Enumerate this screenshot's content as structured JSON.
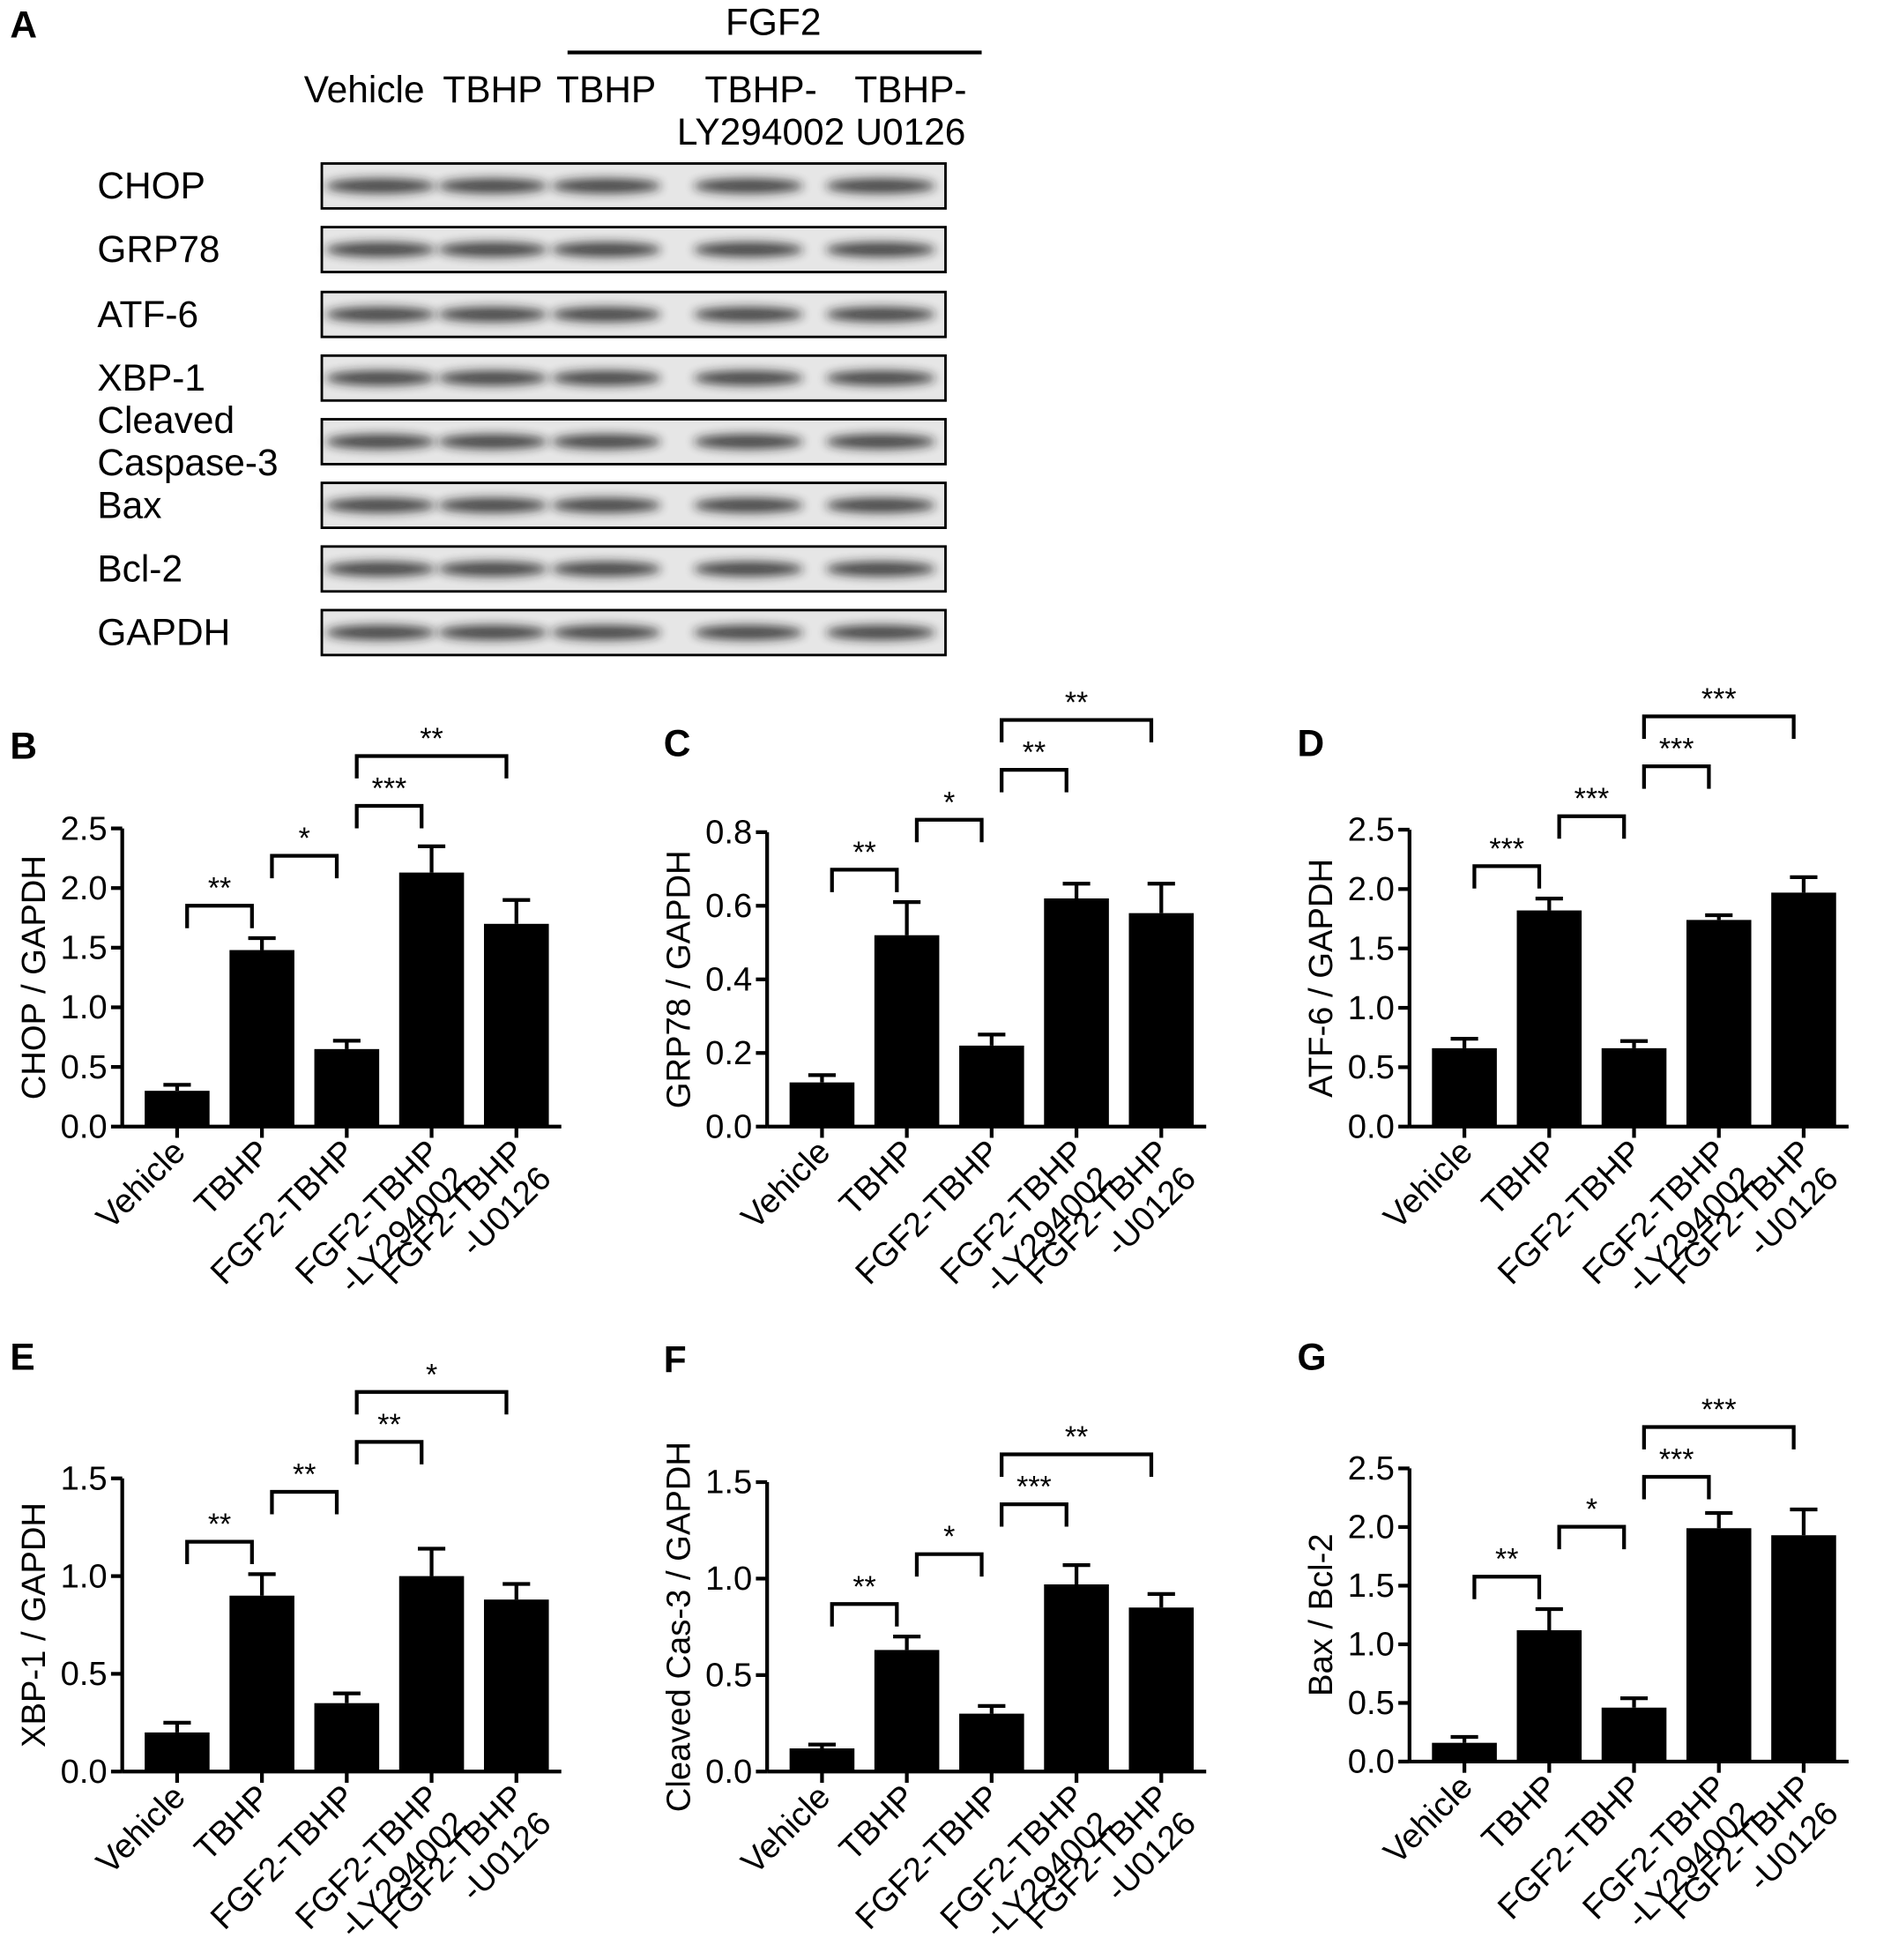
{
  "blot": {
    "panel_label": "A",
    "group_label": "FGF2",
    "lanes": [
      "Vehicle",
      "TBHP",
      "TBHP",
      "TBHP-\nLY294002",
      "TBHP-\nU0126"
    ],
    "rows": [
      "CHOP",
      "GRP78",
      "ATF-6",
      "XBP-1",
      "Cleaved\nCaspase-3",
      "Bax",
      "Bcl-2",
      "GAPDH"
    ]
  },
  "chart_data": [
    {
      "type": "bar",
      "panel_label": "B",
      "ylabel": "CHOP / GAPDH",
      "color": "#000000",
      "categories": [
        "Vehicle",
        "TBHP",
        "FGF2-TBHP",
        "FGF2-TBHP\n-LY294002",
        "FGF2-TBHP\n-U0126"
      ],
      "values": [
        0.3,
        1.48,
        0.65,
        2.13,
        1.7
      ],
      "errors": [
        0.05,
        0.1,
        0.07,
        0.22,
        0.2
      ],
      "ylim": [
        0,
        2.5
      ],
      "yticks": [
        {
          "value": 0,
          "label": "0.0"
        },
        0.5,
        {
          "value": 1,
          "label": "1.0"
        },
        1.5,
        {
          "value": 2,
          "label": "2.0"
        },
        2.5
      ],
      "comparisons": [
        {
          "from": 0,
          "to": 1,
          "label": "**"
        },
        {
          "from": 1,
          "to": 2,
          "label": "*"
        },
        {
          "from": 2,
          "to": 3,
          "label": "***"
        },
        {
          "from": 2,
          "to": 4,
          "label": "**"
        }
      ]
    },
    {
      "type": "bar",
      "panel_label": "C",
      "ylabel": "GRP78 / GAPDH",
      "color": "#000000",
      "categories": [
        "Vehicle",
        "TBHP",
        "FGF2-TBHP",
        "FGF2-TBHP\n-LY294002",
        "FGF2-TBHP\n-U0126"
      ],
      "values": [
        0.12,
        0.52,
        0.22,
        0.62,
        0.58
      ],
      "errors": [
        0.02,
        0.09,
        0.03,
        0.04,
        0.08
      ],
      "ylim": [
        0,
        0.8
      ],
      "yticks": [
        {
          "value": 0,
          "label": "0.0"
        },
        0.2,
        0.4,
        0.6,
        0.8
      ],
      "comparisons": [
        {
          "from": 0,
          "to": 1,
          "label": "**"
        },
        {
          "from": 1,
          "to": 2,
          "label": "*"
        },
        {
          "from": 2,
          "to": 3,
          "label": "**"
        },
        {
          "from": 2,
          "to": 4,
          "label": "**"
        }
      ]
    },
    {
      "type": "bar",
      "panel_label": "D",
      "ylabel": "ATF-6 / GAPDH",
      "color": "#000000",
      "categories": [
        "Vehicle",
        "TBHP",
        "FGF2-TBHP",
        "FGF2-TBHP\n-LY294002",
        "FGF2-TBHP\n-U0126"
      ],
      "values": [
        0.66,
        1.82,
        0.66,
        1.74,
        1.97
      ],
      "errors": [
        0.08,
        0.1,
        0.06,
        0.04,
        0.13
      ],
      "ylim": [
        0,
        2.5
      ],
      "yticks": [
        {
          "value": 0,
          "label": "0.0"
        },
        0.5,
        {
          "value": 1,
          "label": "1.0"
        },
        1.5,
        {
          "value": 2,
          "label": "2.0"
        },
        2.5
      ],
      "comparisons": [
        {
          "from": 0,
          "to": 1,
          "label": "***"
        },
        {
          "from": 1,
          "to": 2,
          "label": "***"
        },
        {
          "from": 2,
          "to": 3,
          "label": "***"
        },
        {
          "from": 2,
          "to": 4,
          "label": "***"
        }
      ]
    },
    {
      "type": "bar",
      "panel_label": "E",
      "ylabel": "XBP-1 / GAPDH",
      "color": "#000000",
      "categories": [
        "Vehicle",
        "TBHP",
        "FGF2-TBHP",
        "FGF2-TBHP\n-LY294002",
        "FGF2-TBHP\n-U0126"
      ],
      "values": [
        0.2,
        0.9,
        0.35,
        1.0,
        0.88
      ],
      "errors": [
        0.05,
        0.11,
        0.05,
        0.14,
        0.08
      ],
      "ylim": [
        0,
        1.5
      ],
      "yticks": [
        {
          "value": 0,
          "label": "0.0"
        },
        0.5,
        {
          "value": 1,
          "label": "1.0"
        },
        1.5
      ],
      "comparisons": [
        {
          "from": 0,
          "to": 1,
          "label": "**"
        },
        {
          "from": 1,
          "to": 2,
          "label": "**"
        },
        {
          "from": 2,
          "to": 3,
          "label": "**"
        },
        {
          "from": 2,
          "to": 4,
          "label": "*"
        }
      ]
    },
    {
      "type": "bar",
      "panel_label": "F",
      "ylabel": "Cleaved Cas-3 / GAPDH",
      "color": "#000000",
      "categories": [
        "Vehicle",
        "TBHP",
        "FGF2-TBHP",
        "FGF2-TBHP\n-LY294002",
        "FGF2-TBHP\n-U0126"
      ],
      "values": [
        0.12,
        0.63,
        0.3,
        0.97,
        0.85
      ],
      "errors": [
        0.02,
        0.07,
        0.04,
        0.1,
        0.07
      ],
      "ylim": [
        0,
        1.5
      ],
      "yticks": [
        {
          "value": 0,
          "label": "0.0"
        },
        0.5,
        {
          "value": 1,
          "label": "1.0"
        },
        1.5
      ],
      "comparisons": [
        {
          "from": 0,
          "to": 1,
          "label": "**"
        },
        {
          "from": 1,
          "to": 2,
          "label": "*"
        },
        {
          "from": 2,
          "to": 3,
          "label": "***"
        },
        {
          "from": 2,
          "to": 4,
          "label": "**"
        }
      ]
    },
    {
      "type": "bar",
      "panel_label": "G",
      "ylabel": "Bax / Bcl-2",
      "color": "#000000",
      "categories": [
        "Vehicle",
        "TBHP",
        "FGF2-TBHP",
        "FGF2-TBHP\n-LY294002",
        "FGF2-TBHP\n-U0126"
      ],
      "values": [
        0.16,
        1.12,
        0.46,
        1.99,
        1.93
      ],
      "errors": [
        0.05,
        0.18,
        0.08,
        0.13,
        0.22
      ],
      "ylim": [
        0,
        2.5
      ],
      "yticks": [
        {
          "value": 0,
          "label": "0.0"
        },
        0.5,
        {
          "value": 1,
          "label": "1.0"
        },
        1.5,
        {
          "value": 2,
          "label": "2.0"
        },
        2.5
      ],
      "comparisons": [
        {
          "from": 0,
          "to": 1,
          "label": "**"
        },
        {
          "from": 1,
          "to": 2,
          "label": "*"
        },
        {
          "from": 2,
          "to": 3,
          "label": "***"
        },
        {
          "from": 2,
          "to": 4,
          "label": "***"
        }
      ]
    }
  ]
}
